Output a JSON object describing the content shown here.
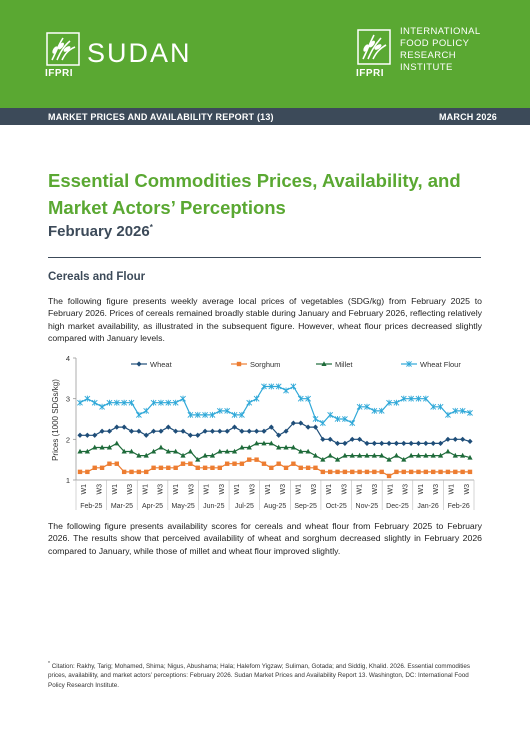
{
  "header": {
    "left_logo_label": "IFPRI",
    "country": "SUDAN",
    "right_logo_label": "IFPRI",
    "institute_lines": [
      "INTERNATIONAL",
      "FOOD POLICY",
      "RESEARCH",
      "INSTITUTE"
    ],
    "brand_color": "#5aa832",
    "bar_color": "#3c4a59"
  },
  "report_bar": {
    "left_text": "MARKET PRICES AND AVAILABILITY REPORT (13)",
    "right_text": "MARCH 2026"
  },
  "title": "Essential Commodities Prices, Availability, and Market Actors’ Perceptions",
  "subtitle": "February 2026",
  "subtitle_marker": "*",
  "section_heading": "Cereals and Flour",
  "paragraph_1": "The following figure presents weekly average local prices of vegetables (SDG/kg) from February 2025 to February 2026. Prices of cereals remained broadly stable during January and February 2026, reflecting relatively high market availability, as illustrated in the subsequent figure. However, wheat flour prices decreased slightly compared with January levels.",
  "paragraph_2": "The following figure presents availability scores for cereals and wheat flour from February 2025 to February 2026. The results show that perceived availability of wheat and sorghum decreased slightly in February 2026 compared to January, while those of millet and wheat flour improved slightly.",
  "footnote_marker": "*",
  "footnote": "Citation: Rakhy, Tarig; Mohamed, Shima; Nigus, Abushama; Hala; Halefom Yigzaw; Suliman, Gotada; and Siddig, Khalid. 2026. Essential commodities prices, availability, and market actors’ perceptions: February 2026. Sudan Market Prices and Availability Report 13. Washington, DC: International Food Policy Research Institute.",
  "chart_data": {
    "type": "line",
    "title": "",
    "xlabel": "",
    "ylabel": "Prices (1000 SDGs/kg)",
    "ylim": [
      1,
      4
    ],
    "yticks": [
      1,
      2,
      3,
      4
    ],
    "legend_position": "top",
    "grid": false,
    "week_labels": [
      "W1",
      "W3",
      "W1",
      "W3",
      "W1",
      "W3",
      "W1",
      "W3",
      "W1",
      "W3",
      "W1",
      "W3",
      "W1",
      "W3",
      "W1",
      "W3",
      "W1",
      "W3",
      "W1",
      "W3",
      "W1",
      "W3",
      "W1",
      "W3",
      "W1",
      "W3"
    ],
    "month_labels": [
      "Feb-25",
      "Mar-25",
      "Apr-25",
      "May-25",
      "Jun-25",
      "Jul-25",
      "Aug-25",
      "Sep-25",
      "Oct-25",
      "Nov-25",
      "Dec-25",
      "Jan-26",
      "Feb-26"
    ],
    "series": [
      {
        "name": "Wheat",
        "color": "#1f4e79",
        "marker": "diamond",
        "values": [
          2.1,
          2.1,
          2.1,
          2.2,
          2.2,
          2.3,
          2.3,
          2.2,
          2.2,
          2.1,
          2.2,
          2.2,
          2.3,
          2.2,
          2.2,
          2.1,
          2.1,
          2.2,
          2.2,
          2.2,
          2.2,
          2.3,
          2.2,
          2.2,
          2.2,
          2.2,
          2.3,
          2.1,
          2.2,
          2.4,
          2.4,
          2.3,
          2.3,
          2.0,
          2.0,
          1.9,
          1.9,
          2.0,
          2.0,
          1.9,
          1.9,
          1.9,
          1.9,
          1.9,
          1.9,
          1.9,
          1.9,
          1.9,
          1.9,
          1.9,
          2.0,
          2.0,
          2.0,
          1.95
        ]
      },
      {
        "name": "Sorghum",
        "color": "#ed7d31",
        "marker": "square",
        "values": [
          1.2,
          1.2,
          1.3,
          1.3,
          1.4,
          1.4,
          1.2,
          1.2,
          1.2,
          1.2,
          1.3,
          1.3,
          1.3,
          1.3,
          1.4,
          1.4,
          1.3,
          1.3,
          1.3,
          1.3,
          1.4,
          1.4,
          1.4,
          1.5,
          1.5,
          1.4,
          1.3,
          1.4,
          1.3,
          1.4,
          1.3,
          1.3,
          1.3,
          1.2,
          1.2,
          1.2,
          1.2,
          1.2,
          1.2,
          1.2,
          1.2,
          1.2,
          1.1,
          1.2,
          1.2,
          1.2,
          1.2,
          1.2,
          1.2,
          1.2,
          1.2,
          1.2,
          1.2,
          1.2
        ]
      },
      {
        "name": "Millet",
        "color": "#1e6b3a",
        "marker": "triangle",
        "values": [
          1.7,
          1.7,
          1.8,
          1.8,
          1.8,
          1.9,
          1.7,
          1.7,
          1.6,
          1.6,
          1.7,
          1.8,
          1.7,
          1.7,
          1.6,
          1.7,
          1.5,
          1.6,
          1.6,
          1.7,
          1.7,
          1.7,
          1.8,
          1.8,
          1.9,
          1.9,
          1.9,
          1.8,
          1.8,
          1.8,
          1.7,
          1.7,
          1.6,
          1.5,
          1.6,
          1.5,
          1.6,
          1.6,
          1.6,
          1.6,
          1.6,
          1.6,
          1.5,
          1.6,
          1.5,
          1.6,
          1.6,
          1.6,
          1.6,
          1.6,
          1.7,
          1.6,
          1.6,
          1.55
        ]
      },
      {
        "name": "Wheat Flour",
        "color": "#2fa8d8",
        "marker": "star",
        "values": [
          2.9,
          3.0,
          2.9,
          2.8,
          2.9,
          2.9,
          2.9,
          2.9,
          2.6,
          2.7,
          2.9,
          2.9,
          2.9,
          2.9,
          3.0,
          2.6,
          2.6,
          2.6,
          2.6,
          2.7,
          2.7,
          2.6,
          2.6,
          2.9,
          3.0,
          3.3,
          3.3,
          3.3,
          3.2,
          3.3,
          3.0,
          3.0,
          2.5,
          2.4,
          2.6,
          2.5,
          2.5,
          2.4,
          2.8,
          2.8,
          2.7,
          2.7,
          2.9,
          2.9,
          3.0,
          3.0,
          3.0,
          3.0,
          2.8,
          2.8,
          2.6,
          2.7,
          2.7,
          2.65
        ]
      }
    ]
  }
}
